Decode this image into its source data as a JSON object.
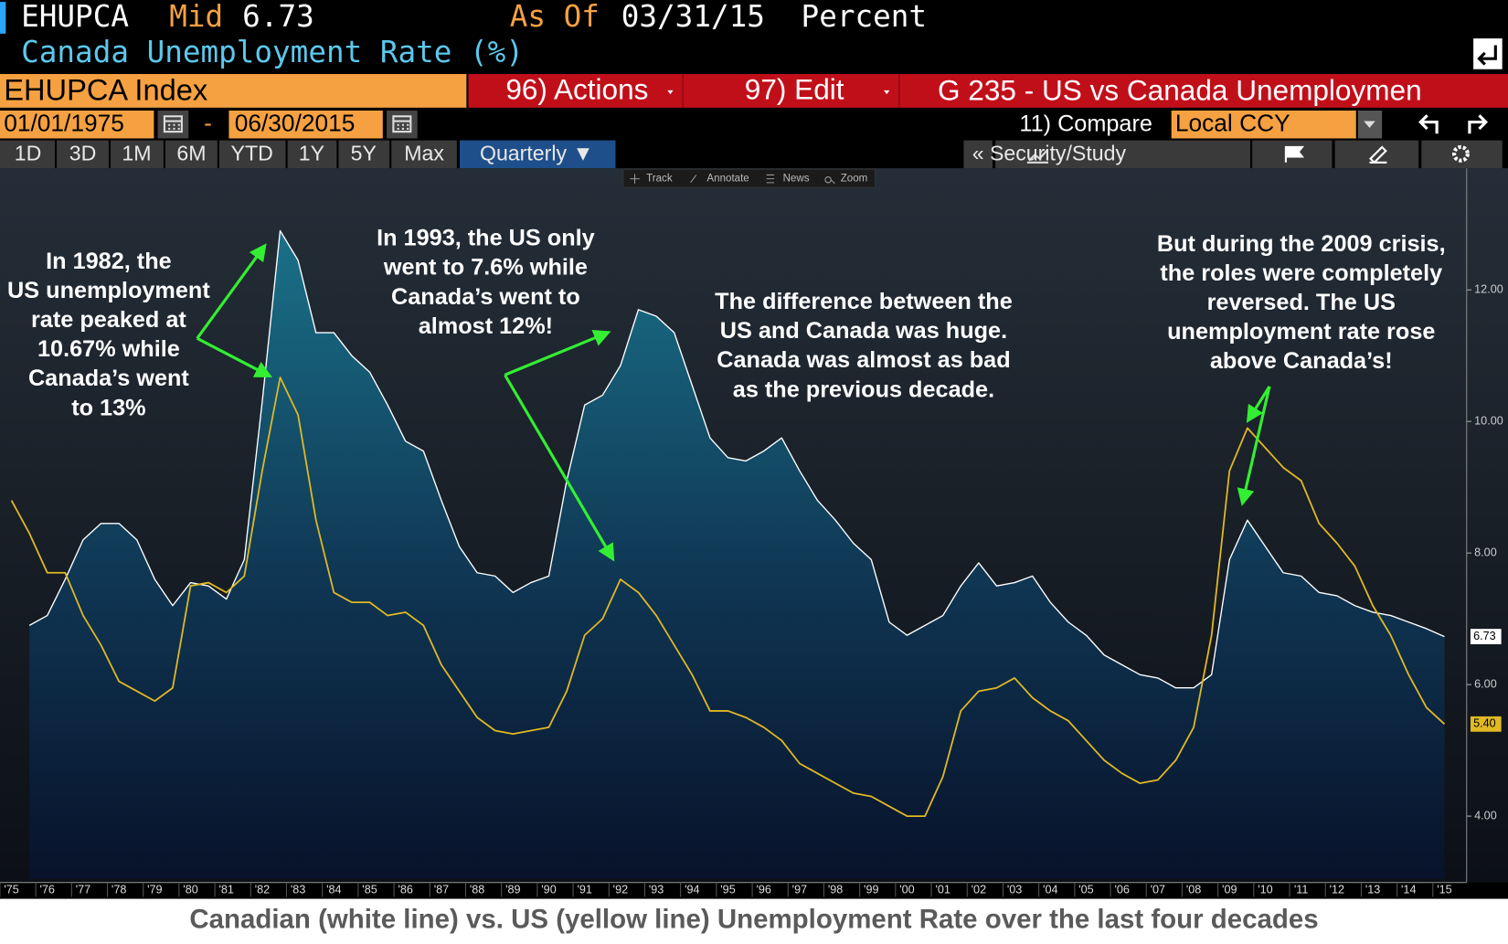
{
  "header": {
    "ticker": "EHUPCA",
    "mid_label": "Mid",
    "mid_value": "6.73",
    "as_of_label": "As Of",
    "as_of_date": "03/31/15",
    "units": "Percent",
    "name": "Canada Unemployment Rate (%)"
  },
  "toolbar": {
    "security": "EHUPCA Index",
    "actions": "96) Actions",
    "edit": "97) Edit",
    "chart_name": "G 235 - US vs Canada Unemploymen",
    "start_date": "01/01/1975",
    "date_separator": "-",
    "end_date": "06/30/2015",
    "compare": "11) Compare",
    "currency": "Local CCY",
    "periods": [
      "1D",
      "3D",
      "1M",
      "6M",
      "YTD",
      "1Y",
      "5Y",
      "Max"
    ],
    "frequency": "Quarterly ▼",
    "study": "Security/Study",
    "chart_tools": [
      "Track",
      "Annotate",
      "News",
      "Zoom"
    ]
  },
  "chart_data": {
    "type": "line",
    "x": [
      1975,
      1975.5,
      1976,
      1976.5,
      1977,
      1977.5,
      1978,
      1978.5,
      1979,
      1979.5,
      1980,
      1980.5,
      1981,
      1981.5,
      1982,
      1982.5,
      1983,
      1983.5,
      1984,
      1984.5,
      1985,
      1985.5,
      1986,
      1986.5,
      1987,
      1987.5,
      1988,
      1988.5,
      1989,
      1989.5,
      1990,
      1990.5,
      1991,
      1991.5,
      1992,
      1992.5,
      1993,
      1993.5,
      1994,
      1994.5,
      1995,
      1995.5,
      1996,
      1996.5,
      1997,
      1997.5,
      1998,
      1998.5,
      1999,
      1999.5,
      2000,
      2000.5,
      2001,
      2001.5,
      2002,
      2002.5,
      2003,
      2003.5,
      2004,
      2004.5,
      2005,
      2005.5,
      2006,
      2006.5,
      2007,
      2007.5,
      2008,
      2008.5,
      2009,
      2009.5,
      2010,
      2010.5,
      2011,
      2011.5,
      2012,
      2012.5,
      2013,
      2013.5,
      2014,
      2014.5,
      2015
    ],
    "series": [
      {
        "name": "Canada",
        "color": "#ffffff",
        "values": [
          null,
          6.9,
          7.05,
          7.6,
          8.2,
          8.45,
          8.45,
          8.2,
          7.6,
          7.2,
          7.55,
          7.5,
          7.3,
          7.9,
          10.3,
          12.9,
          12.45,
          11.35,
          11.35,
          11.0,
          10.75,
          10.25,
          9.7,
          9.55,
          8.8,
          8.1,
          7.7,
          7.65,
          7.4,
          7.55,
          7.65,
          9.1,
          10.25,
          10.4,
          10.85,
          11.7,
          11.6,
          11.35,
          10.55,
          9.75,
          9.45,
          9.4,
          9.55,
          9.75,
          9.25,
          8.8,
          8.5,
          8.15,
          7.9,
          6.95,
          6.75,
          6.9,
          7.05,
          7.5,
          7.85,
          7.5,
          7.55,
          7.65,
          7.25,
          6.95,
          6.75,
          6.45,
          6.3,
          6.15,
          6.1,
          5.95,
          5.95,
          6.15,
          7.9,
          8.5,
          8.1,
          7.7,
          7.65,
          7.4,
          7.35,
          7.2,
          7.1,
          7.05,
          6.95,
          6.85,
          6.73
        ]
      },
      {
        "name": "US",
        "color": "#e0b923",
        "values": [
          8.8,
          8.3,
          7.7,
          7.7,
          7.05,
          6.6,
          6.05,
          5.9,
          5.75,
          5.95,
          7.5,
          7.55,
          7.4,
          7.65,
          9.25,
          10.67,
          10.1,
          8.5,
          7.4,
          7.25,
          7.25,
          7.05,
          7.1,
          6.9,
          6.3,
          5.9,
          5.5,
          5.3,
          5.25,
          5.3,
          5.35,
          5.9,
          6.75,
          7.0,
          7.6,
          7.4,
          7.05,
          6.6,
          6.15,
          5.6,
          5.6,
          5.5,
          5.35,
          5.15,
          4.8,
          4.65,
          4.5,
          4.35,
          4.3,
          4.15,
          4.0,
          4.0,
          4.6,
          5.6,
          5.9,
          5.95,
          6.1,
          5.8,
          5.6,
          5.45,
          5.15,
          4.85,
          4.65,
          4.5,
          4.55,
          4.85,
          5.35,
          6.75,
          9.25,
          9.9,
          9.6,
          9.3,
          9.1,
          8.45,
          8.15,
          7.8,
          7.2,
          6.75,
          6.15,
          5.65,
          5.4
        ],
        "value_labels": [
          null,
          null,
          null,
          null,
          null,
          null,
          null,
          null,
          null,
          null,
          null,
          null,
          null,
          null,
          null,
          null,
          null,
          null,
          null,
          null,
          null,
          null,
          null,
          null,
          null,
          null,
          null,
          null,
          null,
          null,
          null,
          null,
          null,
          null,
          null,
          null,
          null,
          null,
          null,
          null,
          null,
          null,
          null,
          null,
          null,
          null,
          null,
          null,
          null,
          null,
          null,
          null,
          null,
          null,
          null,
          null,
          null,
          null,
          null,
          null,
          null,
          null,
          null,
          null,
          null,
          null,
          null,
          null,
          null,
          null,
          null,
          null,
          null,
          null,
          null,
          null,
          null,
          null,
          null,
          null,
          "5.40"
        ]
      }
    ],
    "xlim": [
      1974.68,
      2015.62
    ],
    "xticks": [
      {
        "value": 1975,
        "label": "'75"
      },
      {
        "value": 1976,
        "label": "'76"
      },
      {
        "value": 1977,
        "label": "'77"
      },
      {
        "value": 1978,
        "label": "'78"
      },
      {
        "value": 1979,
        "label": "'79"
      },
      {
        "value": 1980,
        "label": "'80"
      },
      {
        "value": 1981,
        "label": "'81"
      },
      {
        "value": 1982,
        "label": "'82"
      },
      {
        "value": 1983,
        "label": "'83"
      },
      {
        "value": 1984,
        "label": "'84"
      },
      {
        "value": 1985,
        "label": "'85"
      },
      {
        "value": 1986,
        "label": "'86"
      },
      {
        "value": 1987,
        "label": "'87"
      },
      {
        "value": 1988,
        "label": "'88"
      },
      {
        "value": 1989,
        "label": "'89"
      },
      {
        "value": 1990,
        "label": "'90"
      },
      {
        "value": 1991,
        "label": "'91"
      },
      {
        "value": 1992,
        "label": "'92"
      },
      {
        "value": 1993,
        "label": "'93"
      },
      {
        "value": 1994,
        "label": "'94"
      },
      {
        "value": 1995,
        "label": "'95"
      },
      {
        "value": 1996,
        "label": "'96"
      },
      {
        "value": 1997,
        "label": "'97"
      },
      {
        "value": 1998,
        "label": "'98"
      },
      {
        "value": 1999,
        "label": "'99"
      },
      {
        "value": 2000,
        "label": "'00"
      },
      {
        "value": 2001,
        "label": "'01"
      },
      {
        "value": 2002,
        "label": "'02"
      },
      {
        "value": 2003,
        "label": "'03"
      },
      {
        "value": 2004,
        "label": "'04"
      },
      {
        "value": 2005,
        "label": "'05"
      },
      {
        "value": 2006,
        "label": "'06"
      },
      {
        "value": 2007,
        "label": "'07"
      },
      {
        "value": 2008,
        "label": "'08"
      },
      {
        "value": 2009,
        "label": "'09"
      },
      {
        "value": 2010,
        "label": "'10"
      },
      {
        "value": 2011,
        "label": "'11"
      },
      {
        "value": 2012,
        "label": "'12"
      },
      {
        "value": 2013,
        "label": "'13"
      },
      {
        "value": 2014,
        "label": "'14"
      },
      {
        "value": 2015,
        "label": "'15"
      }
    ],
    "ylim": [
      3.05,
      13.85
    ],
    "yticks": [
      {
        "value": 4,
        "label": "4.00"
      },
      {
        "value": 6,
        "label": "6.00"
      },
      {
        "value": 8,
        "label": "8.00"
      },
      {
        "value": 10,
        "label": "10.00"
      },
      {
        "value": 12,
        "label": "12.00"
      }
    ],
    "y_axis_side": "right",
    "grid": false,
    "area_fill_series": 0,
    "annotations": [
      {
        "lines": [
          "In 1982, the",
          "US unemployment",
          "rate peaked at",
          "10.67% while",
          "Canada’s went",
          "to 13%"
        ]
      },
      {
        "lines": [
          "In 1993, the US only",
          "went to 7.6% while",
          "Canada’s went to",
          "almost 12%!"
        ]
      },
      {
        "lines": [
          "The difference between the",
          "US and Canada was huge.",
          "Canada was almost as bad",
          "as the previous decade."
        ]
      },
      {
        "lines": [
          "But during the 2009 crisis,",
          "the roles were completely",
          "reversed.  The US",
          "unemployment rate rose",
          "above Canada’s!"
        ]
      }
    ]
  },
  "caption": "Canadian (white line) vs. US (yellow line) Unemployment Rate over the last four decades"
}
